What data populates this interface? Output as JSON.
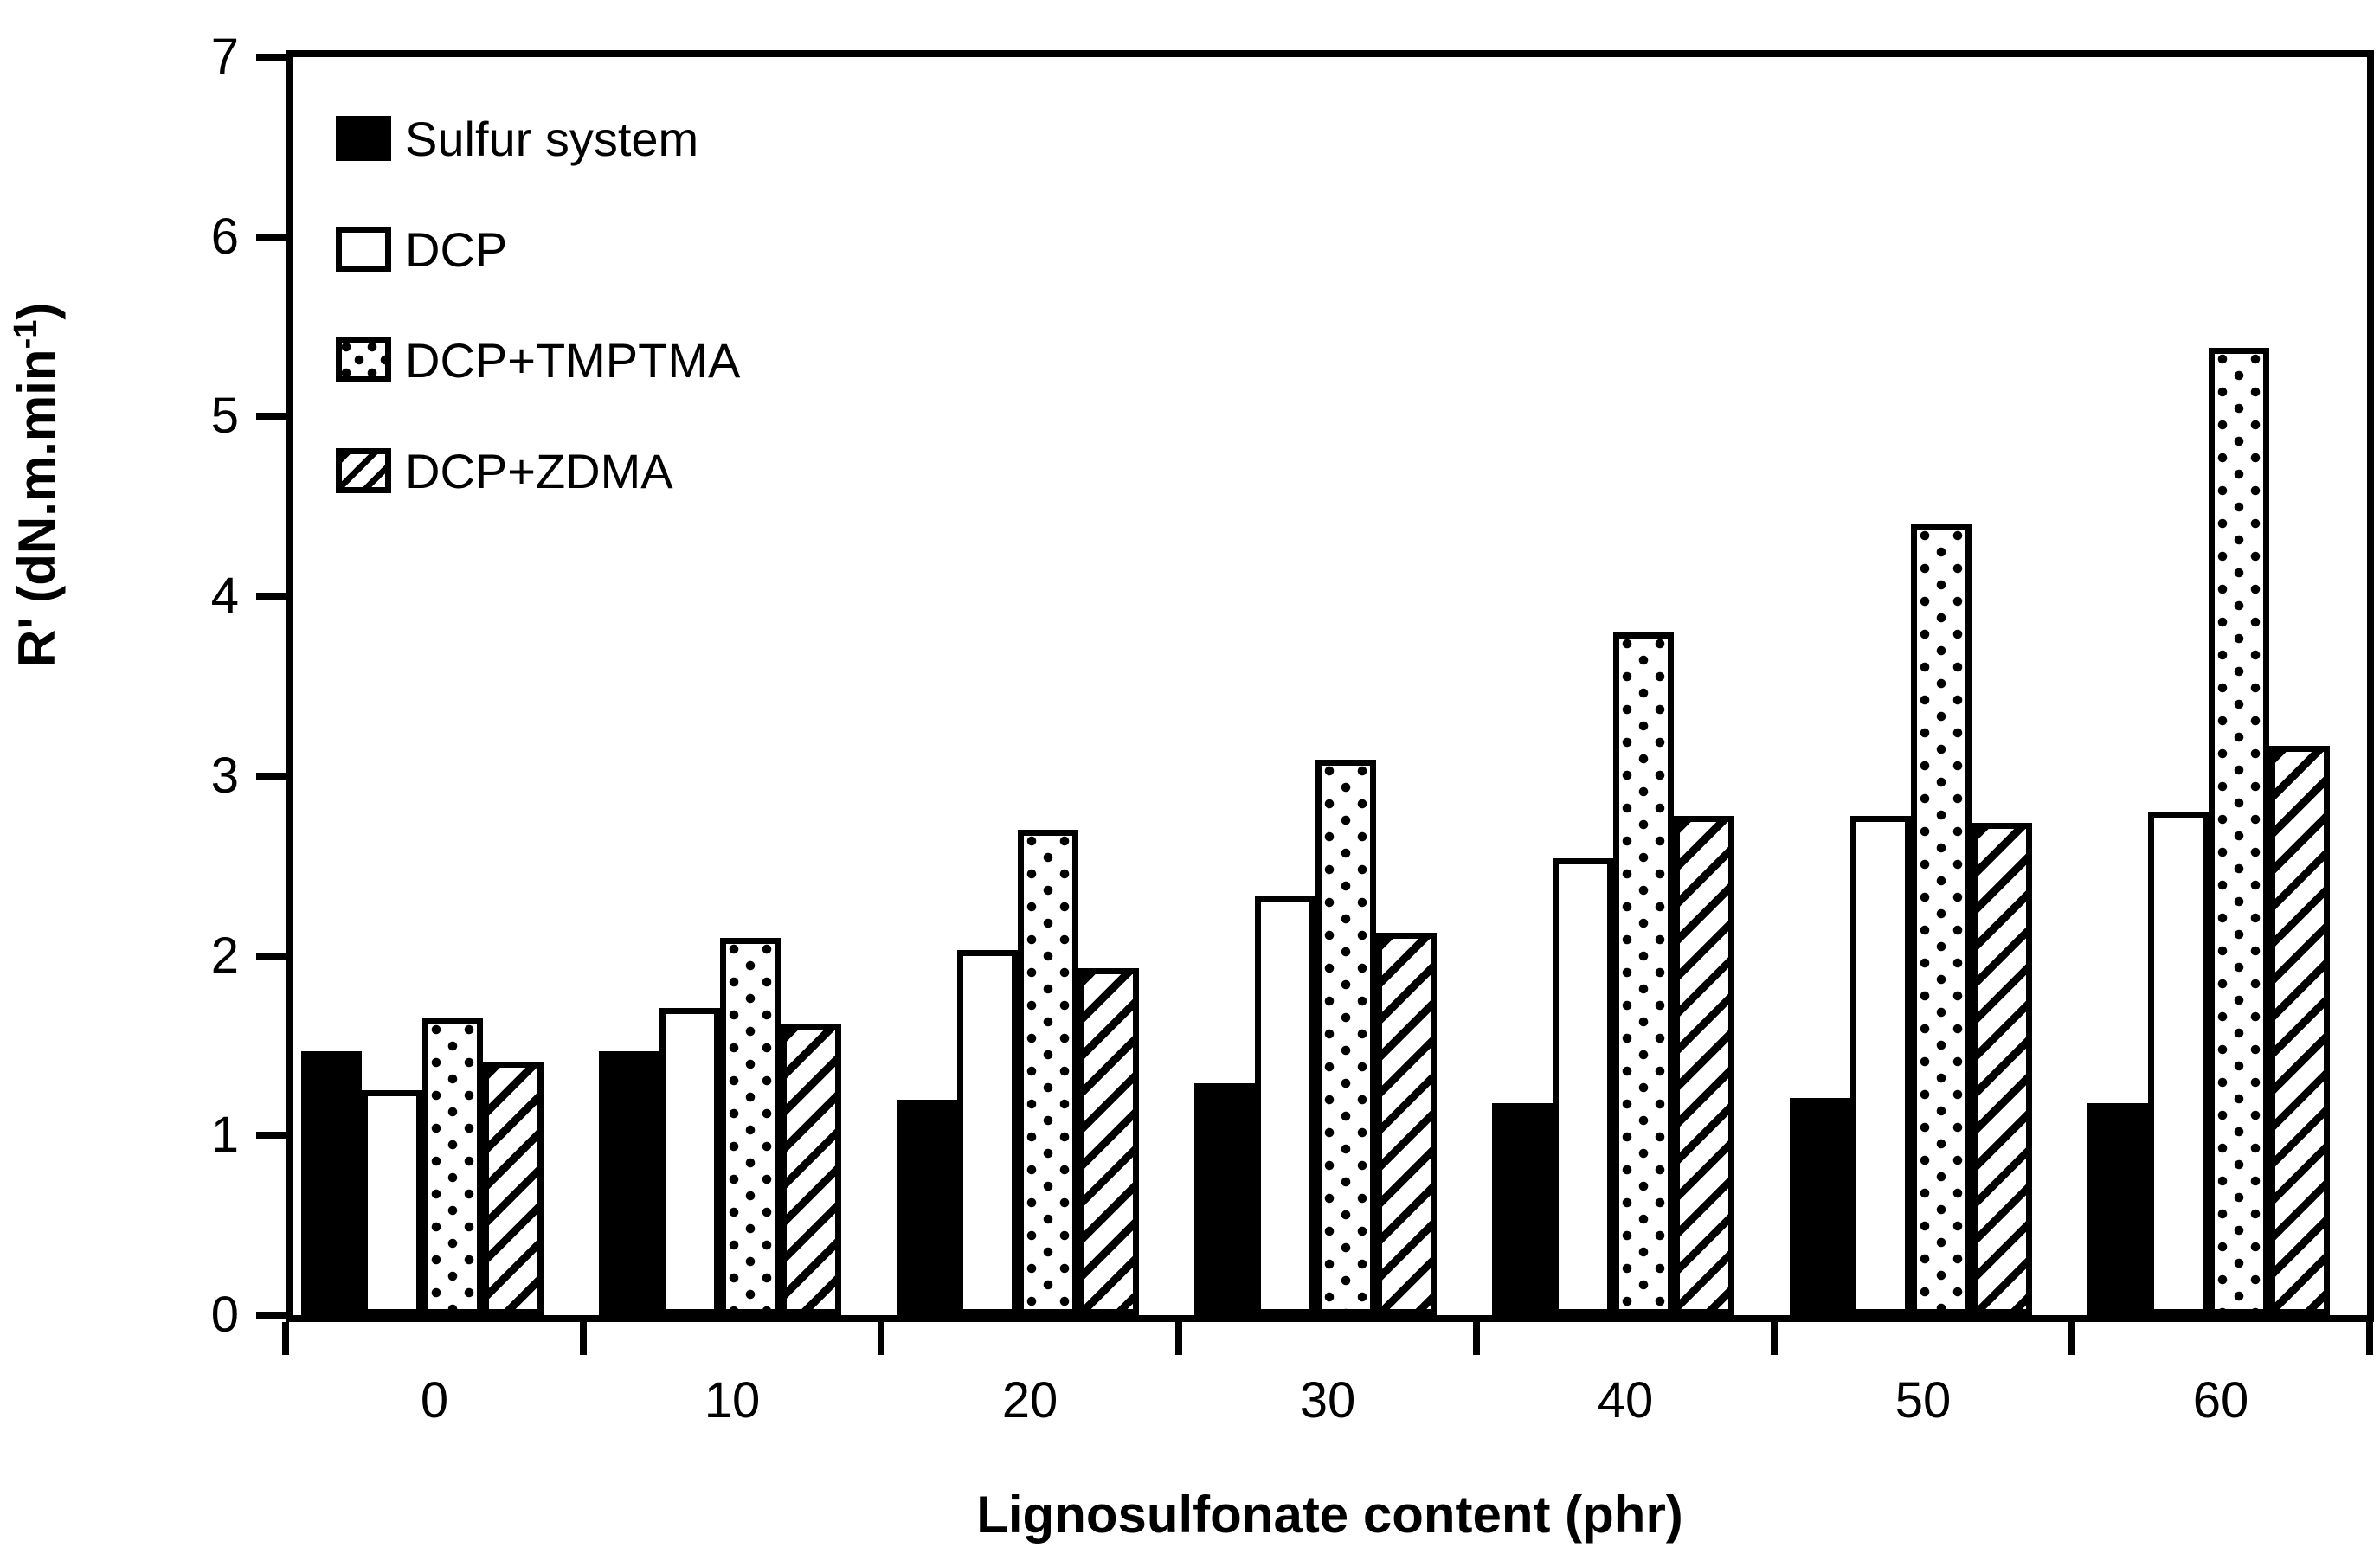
{
  "figure": {
    "background_color": "#ffffff",
    "ink_color": "#000000"
  },
  "y_axis": {
    "label_main": "R' (dN.m.min",
    "label_superscript": "-1",
    "label_close": ")",
    "tick_labels": [
      "0",
      "1",
      "2",
      "3",
      "4",
      "5",
      "6",
      "7"
    ],
    "min": 0,
    "max": 7
  },
  "x_axis": {
    "label": "Lignosulfonate content (phr)",
    "tick_labels": [
      "0",
      "10",
      "20",
      "30",
      "40",
      "50",
      "60"
    ]
  },
  "legend": {
    "position": "top-left-inside",
    "items": [
      {
        "name": "Sulfur system",
        "pattern": "solid"
      },
      {
        "name": "DCP",
        "pattern": "plain"
      },
      {
        "name": "DCP+TMPTMA",
        "pattern": "dots"
      },
      {
        "name": "DCP+ZDMA",
        "pattern": "hatch"
      }
    ]
  },
  "chart_data": {
    "type": "bar",
    "title": "",
    "xlabel": "Lignosulfonate content (phr)",
    "ylabel": "R' (dN.m.min-1)",
    "ylim": [
      0,
      7
    ],
    "y_tick_step": 1,
    "grid": false,
    "legend_position": "top-left inside plot",
    "categories": [
      "0",
      "10",
      "20",
      "30",
      "40",
      "50",
      "60"
    ],
    "series": [
      {
        "name": "Sulfur system",
        "pattern": "solid",
        "values": [
          1.47,
          1.47,
          1.2,
          1.29,
          1.18,
          1.21,
          1.18
        ]
      },
      {
        "name": "DCP",
        "pattern": "plain",
        "values": [
          1.25,
          1.71,
          2.03,
          2.33,
          2.54,
          2.78,
          2.8
        ]
      },
      {
        "name": "DCP+TMPTMA",
        "pattern": "dots",
        "values": [
          1.65,
          2.1,
          2.7,
          3.09,
          3.8,
          4.4,
          5.38
        ]
      },
      {
        "name": "DCP+ZDMA",
        "pattern": "hatch",
        "values": [
          1.41,
          1.62,
          1.93,
          2.13,
          2.78,
          2.74,
          3.17
        ]
      }
    ]
  }
}
